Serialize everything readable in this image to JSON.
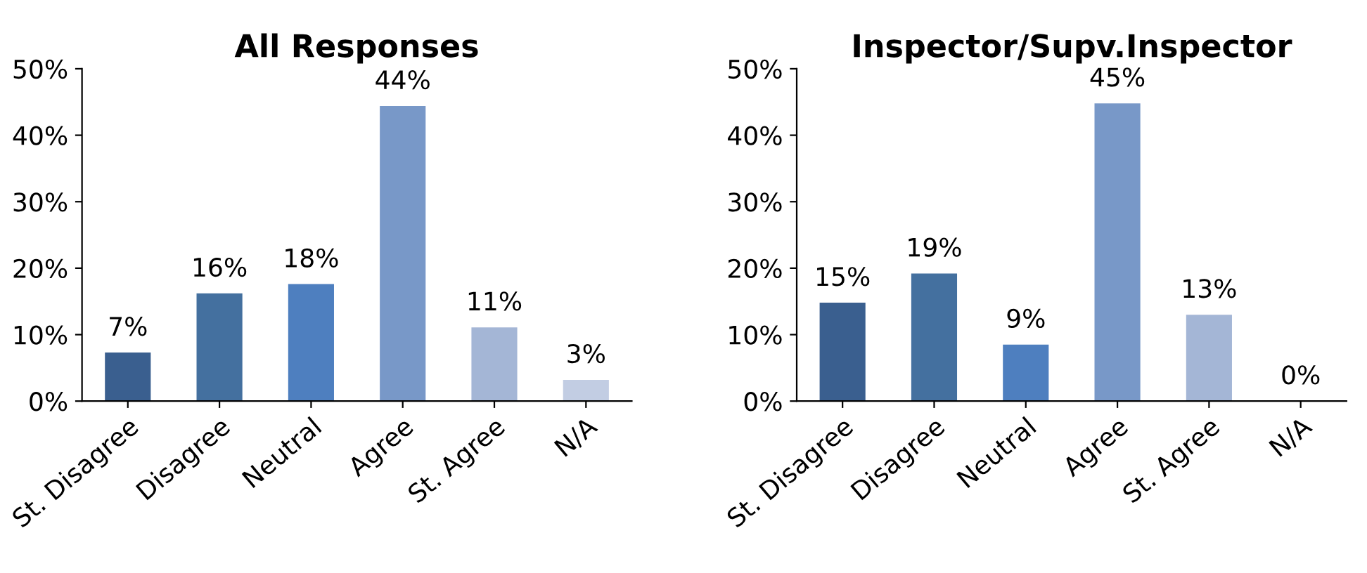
{
  "chart_data": [
    {
      "type": "bar",
      "title": "All Responses",
      "categories": [
        "St. Disagree",
        "Disagree",
        "Neutral",
        "Agree",
        "St. Agree",
        "N/A"
      ],
      "values": [
        7.3,
        16.2,
        17.6,
        44.4,
        11.1,
        3.2
      ],
      "value_labels": [
        "7%",
        "16%",
        "18%",
        "44%",
        "11%",
        "3%"
      ],
      "colors": [
        "#3a5f8f",
        "#44709f",
        "#4e7fbf",
        "#7898c8",
        "#a4b6d6",
        "#c2cde3"
      ],
      "ylim": [
        0,
        50
      ],
      "yticks": [
        {
          "value": 0,
          "label": "0%"
        },
        {
          "value": 10,
          "label": "10%"
        },
        {
          "value": 20,
          "label": "20%"
        },
        {
          "value": 30,
          "label": "30%"
        },
        {
          "value": 40,
          "label": "40%"
        },
        {
          "value": 50,
          "label": "50%"
        }
      ],
      "grid": false,
      "legend": false
    },
    {
      "type": "bar",
      "title": "Inspector/Supv.Inspector",
      "categories": [
        "St. Disagree",
        "Disagree",
        "Neutral",
        "Agree",
        "St. Agree",
        "N/A"
      ],
      "values": [
        14.8,
        19.2,
        8.5,
        44.8,
        13,
        0
      ],
      "value_labels": [
        "15%",
        "19%",
        "9%",
        "45%",
        "13%",
        "0%"
      ],
      "colors": [
        "#3a5f8f",
        "#44709f",
        "#4e7fbf",
        "#7898c8",
        "#a4b6d6",
        "#c2cde3"
      ],
      "ylim": [
        0,
        50
      ],
      "yticks": [
        {
          "value": 0,
          "label": "0%"
        },
        {
          "value": 10,
          "label": "10%"
        },
        {
          "value": 20,
          "label": "20%"
        },
        {
          "value": 30,
          "label": "30%"
        },
        {
          "value": 40,
          "label": "40%"
        },
        {
          "value": 50,
          "label": "50%"
        }
      ],
      "grid": false,
      "legend": false
    }
  ]
}
